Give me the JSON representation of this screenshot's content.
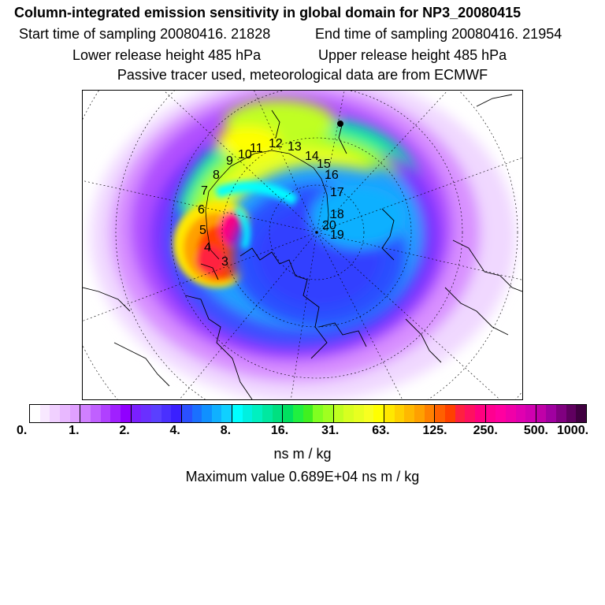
{
  "title": "Column-integrated emission sensitivity in global domain for NP3_20080415",
  "start_time": "Start time of sampling 20080416. 21828",
  "end_time": "End time of sampling 20080416. 21954",
  "lower_release": "Lower release height  485 hPa",
  "upper_release": "Upper release height  485 hPa",
  "tracer_note": "Passive tracer used, meteorological data are from ECMWF",
  "colorbar": {
    "ticks": [
      "0.",
      "1.",
      "2.",
      "4.",
      "8.",
      "16.",
      "31.",
      "63.",
      "125.",
      "250.",
      "500.",
      "1000."
    ],
    "colors": [
      "#ffffff",
      "#f8e8ff",
      "#f0d0ff",
      "#e8b8ff",
      "#e0a0ff",
      "#d080ff",
      "#c060ff",
      "#b040ff",
      "#a020ff",
      "#9000ff",
      "#7a20ff",
      "#6a30ff",
      "#5a40ff",
      "#4a30ff",
      "#3a20ff",
      "#2a50ff",
      "#1a70ff",
      "#1090ff",
      "#10b0ff",
      "#10d0ff",
      "#00ffff",
      "#00f0e0",
      "#00f0c0",
      "#00e8a0",
      "#00e080",
      "#00e060",
      "#20f040",
      "#40f020",
      "#80ff20",
      "#a0ff20",
      "#c0ff20",
      "#d8ff20",
      "#e8ff20",
      "#f8ff20",
      "#ffff00",
      "#ffe800",
      "#ffd000",
      "#ffb800",
      "#ffa000",
      "#ff8000",
      "#ff6000",
      "#ff4000",
      "#ff2040",
      "#ff1060",
      "#ff0080",
      "#ff0090",
      "#ff00a0",
      "#f000a8",
      "#e000b0",
      "#d000b0",
      "#c000a8",
      "#a000a0",
      "#800080",
      "#600060",
      "#400040"
    ]
  },
  "units": "ns m / kg",
  "max_value": "Maximum value  0.689E+04 ns m / kg",
  "trajectory_labels": [
    "3",
    "4",
    "5",
    "6",
    "7",
    "8",
    "9",
    "10",
    "11",
    "12",
    "13",
    "14",
    "15",
    "16",
    "17",
    "18",
    "19",
    "20"
  ]
}
